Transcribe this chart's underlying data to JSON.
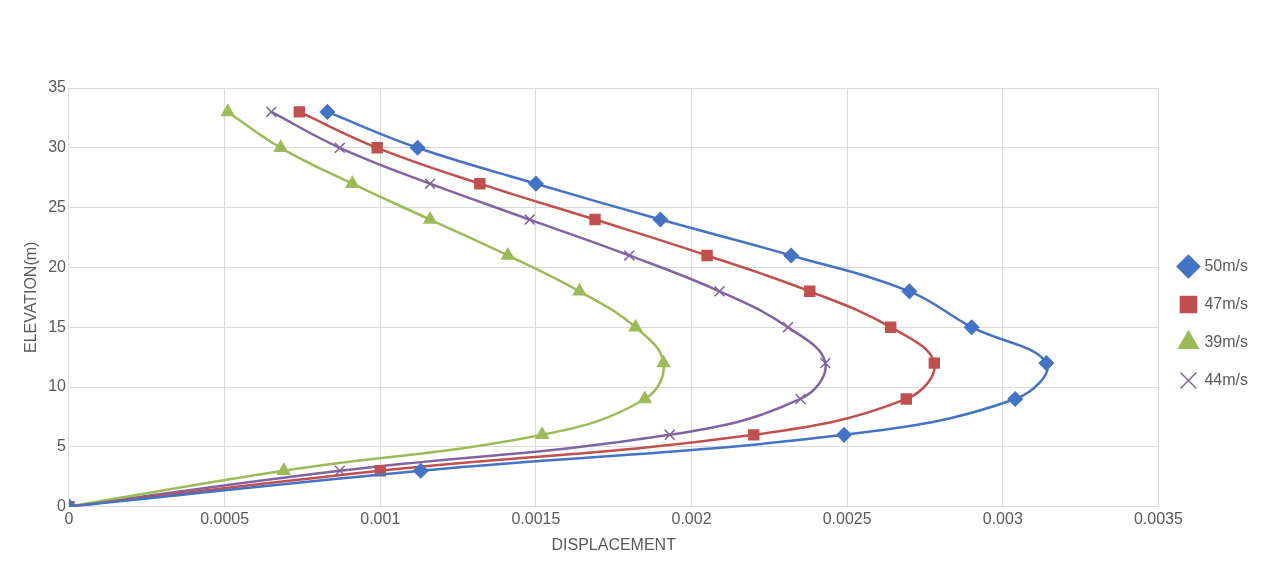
{
  "chart_data": {
    "type": "line",
    "xlabel": "DISPLACEMENT",
    "ylabel": "ELEVATION(m)",
    "xlim": [
      0,
      0.0035
    ],
    "xticks": [
      0,
      0.0005,
      0.001,
      0.0015,
      0.002,
      0.0025,
      0.003,
      0.0035
    ],
    "ylim": [
      0,
      35
    ],
    "yticks": [
      0,
      5,
      10,
      15,
      20,
      25,
      30,
      35
    ],
    "grid": true,
    "legend": "right",
    "series": [
      {
        "name": "50m/s",
        "color": "#4472c4",
        "marker": "diamond",
        "x": [
          0,
          0.00113,
          0.00249,
          0.00304,
          0.00314,
          0.0029,
          0.0027,
          0.00232,
          0.0019,
          0.0015,
          0.00112,
          0.00083
        ],
        "values": [
          0,
          3,
          6,
          9,
          12,
          15,
          18,
          21,
          24,
          27,
          30,
          33
        ]
      },
      {
        "name": "47m/s",
        "color": "#c0504d",
        "marker": "square",
        "x": [
          0,
          0.001,
          0.0022,
          0.00269,
          0.00278,
          0.00264,
          0.00238,
          0.00205,
          0.00169,
          0.00132,
          0.00099,
          0.00074
        ],
        "values": [
          0,
          3,
          6,
          9,
          12,
          15,
          18,
          21,
          24,
          27,
          30,
          33
        ]
      },
      {
        "name": "39m/s",
        "color": "#9bbb59",
        "marker": "triangle",
        "x": [
          0,
          0.00069,
          0.00152,
          0.00185,
          0.00191,
          0.00182,
          0.00164,
          0.00141,
          0.00116,
          0.00091,
          0.00068,
          0.00051
        ],
        "values": [
          0,
          3,
          6,
          9,
          12,
          15,
          18,
          21,
          24,
          27,
          30,
          33
        ]
      },
      {
        "name": "44m/s",
        "color": "#8064a2",
        "marker": "cross",
        "x": [
          0,
          0.00087,
          0.00193,
          0.00235,
          0.00243,
          0.00231,
          0.00209,
          0.0018,
          0.00148,
          0.00116,
          0.00087,
          0.00065
        ],
        "values": [
          0,
          3,
          6,
          9,
          12,
          15,
          18,
          21,
          24,
          27,
          30,
          33
        ]
      }
    ]
  }
}
